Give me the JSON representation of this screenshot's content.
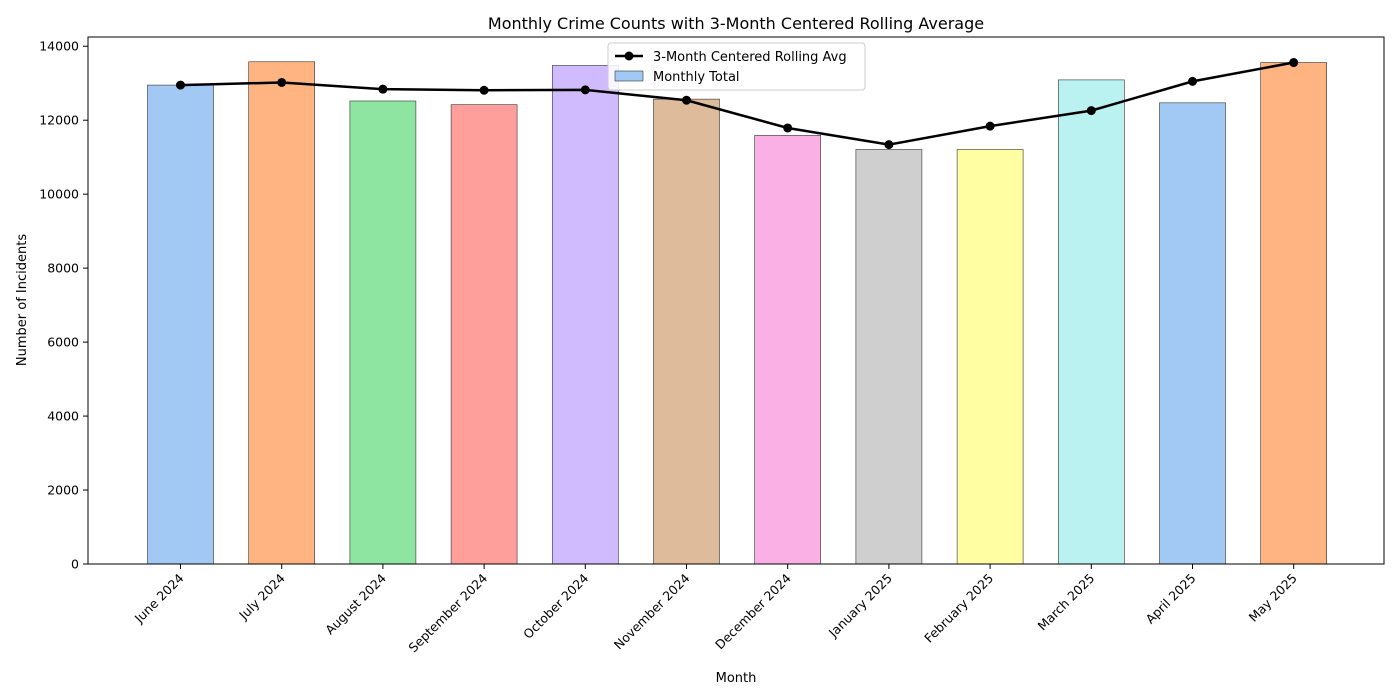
{
  "chart_data": {
    "type": "bar",
    "title": "Monthly Crime Counts with 3-Month Centered Rolling Average",
    "xlabel": "Month",
    "ylabel": "Number of Incidents",
    "ylim": [
      0,
      14250
    ],
    "yticks": [
      0,
      2000,
      4000,
      6000,
      8000,
      10000,
      12000,
      14000
    ],
    "grid": false,
    "legend_position": "top-center",
    "categories": [
      "June 2024",
      "July 2024",
      "August 2024",
      "September 2024",
      "October 2024",
      "November 2024",
      "December 2024",
      "January 2025",
      "February 2025",
      "March 2025",
      "April 2025",
      "May 2025"
    ],
    "series": [
      {
        "name": "Monthly Total",
        "type": "bar",
        "values": [
          12950,
          13580,
          12520,
          12420,
          13480,
          12570,
          11590,
          11210,
          11210,
          13090,
          12470,
          13560
        ],
        "colors": [
          "#a1c9f4",
          "#ffb482",
          "#8de5a1",
          "#ff9f9b",
          "#d0bbff",
          "#debb9b",
          "#fab0e4",
          "#cfcfcf",
          "#fffea3",
          "#b9f2f0",
          "#a1c9f4",
          "#ffb482"
        ]
      },
      {
        "name": "3-Month Centered Rolling Avg",
        "type": "line",
        "color": "#000000",
        "values": [
          12950,
          13020,
          12840,
          12810,
          12820,
          12540,
          11790,
          11340,
          11840,
          12260,
          13050,
          13560
        ]
      }
    ]
  }
}
